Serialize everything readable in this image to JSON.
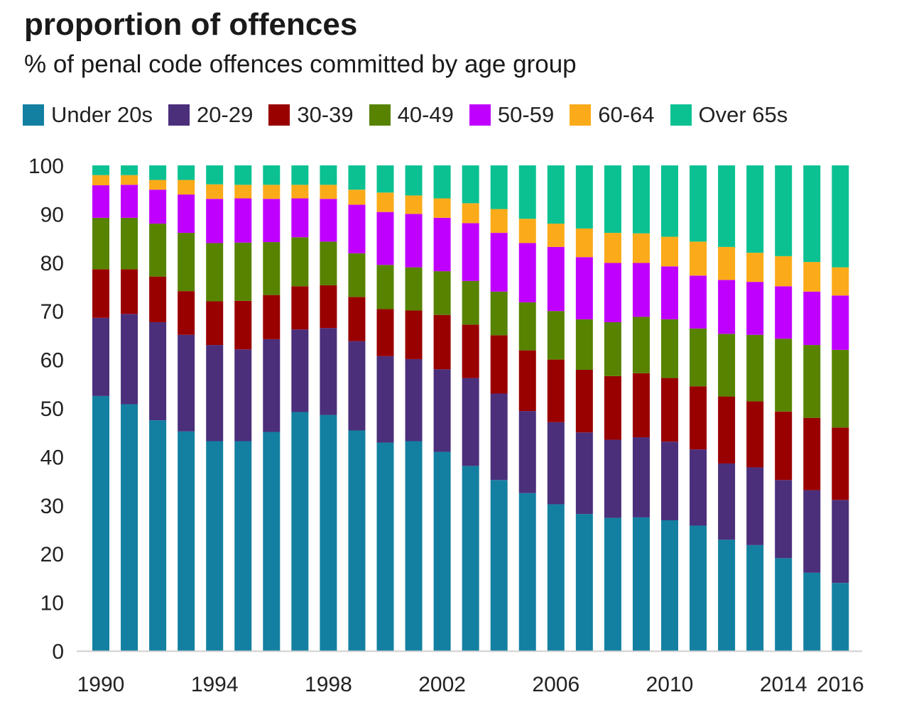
{
  "title": "proportion of offences",
  "subtitle": "% of penal code offences committed by age group",
  "chart_data": {
    "type": "bar",
    "stacked": true,
    "title": "proportion of offences",
    "subtitle": "% of penal code offences committed by age group",
    "xlabel": "",
    "ylabel": "",
    "ylim": [
      0,
      100
    ],
    "yticks": [
      0,
      10,
      20,
      30,
      40,
      50,
      60,
      70,
      80,
      90,
      100
    ],
    "xtick_labels": [
      "1990",
      "1994",
      "1998",
      "2002",
      "2006",
      "2010",
      "2014",
      "2016"
    ],
    "grid": false,
    "legend_position": "top",
    "categories": [
      "1990",
      "1991",
      "1992",
      "1993",
      "1994",
      "1995",
      "1996",
      "1997",
      "1998",
      "1999",
      "2000",
      "2001",
      "2002",
      "2003",
      "2004",
      "2005",
      "2006",
      "2007",
      "2008",
      "2009",
      "2010",
      "2011",
      "2012",
      "2013",
      "2014",
      "2015",
      "2016"
    ],
    "series": [
      {
        "name": "Under 20s",
        "color": "#1380a1",
        "values": [
          52.5,
          50.8,
          47.5,
          45.2,
          43.2,
          43.2,
          45.1,
          49.2,
          48.6,
          45.4,
          42.9,
          43.2,
          41.0,
          38.1,
          35.2,
          32.5,
          30.2,
          28.2,
          27.4,
          27.5,
          26.9,
          25.8,
          22.9,
          21.8,
          19.1,
          16.1,
          14.0
        ]
      },
      {
        "name": "20-29",
        "color": "#4b2f7b",
        "values": [
          16.1,
          18.6,
          20.2,
          19.9,
          19.8,
          18.9,
          19.1,
          17.0,
          17.9,
          18.4,
          17.8,
          16.9,
          17.0,
          18.1,
          17.8,
          16.9,
          16.9,
          16.8,
          16.1,
          16.5,
          16.2,
          15.7,
          15.7,
          16.0,
          16.1,
          17.0,
          17.1
        ]
      },
      {
        "name": "30-39",
        "color": "#990000",
        "values": [
          10.0,
          9.2,
          9.4,
          9.0,
          9.0,
          10.0,
          9.1,
          8.9,
          8.8,
          9.1,
          9.7,
          10.0,
          11.2,
          11.0,
          12.0,
          12.5,
          12.9,
          12.9,
          13.1,
          13.2,
          13.1,
          13.0,
          13.8,
          13.6,
          14.1,
          14.9,
          14.9
        ]
      },
      {
        "name": "40-49",
        "color": "#588300",
        "values": [
          10.6,
          10.6,
          10.9,
          12.0,
          12.0,
          12.0,
          10.9,
          10.1,
          9.0,
          9.0,
          9.1,
          8.9,
          9.0,
          9.0,
          9.0,
          9.9,
          10.0,
          10.4,
          11.1,
          11.6,
          12.1,
          11.9,
          12.9,
          13.7,
          15.0,
          15.0,
          16.0
        ]
      },
      {
        "name": "50-59",
        "color": "#c000ff",
        "values": [
          6.7,
          6.8,
          7.0,
          7.9,
          9.1,
          9.1,
          8.9,
          8.0,
          8.8,
          10.0,
          10.9,
          11.0,
          11.0,
          11.9,
          12.1,
          12.2,
          13.2,
          12.8,
          12.2,
          11.1,
          10.9,
          10.9,
          11.1,
          10.9,
          10.8,
          11.0,
          11.2
        ]
      },
      {
        "name": "60-64",
        "color": "#fbab19",
        "values": [
          2.1,
          2.0,
          2.0,
          3.0,
          3.0,
          2.8,
          2.9,
          2.8,
          2.9,
          3.1,
          4.0,
          3.8,
          4.0,
          4.1,
          4.9,
          5.0,
          4.8,
          5.9,
          6.2,
          6.1,
          6.1,
          7.0,
          6.8,
          6.0,
          6.2,
          6.1,
          5.8
        ]
      },
      {
        "name": "Over 65s",
        "color": "#0bc192",
        "values": [
          2.0,
          2.0,
          3.0,
          3.0,
          3.9,
          4.0,
          4.0,
          4.0,
          4.0,
          5.0,
          5.6,
          6.2,
          6.8,
          7.8,
          9.0,
          11.0,
          12.0,
          13.0,
          13.9,
          14.0,
          14.7,
          15.7,
          16.8,
          18.0,
          18.7,
          19.9,
          21.0
        ]
      }
    ]
  }
}
